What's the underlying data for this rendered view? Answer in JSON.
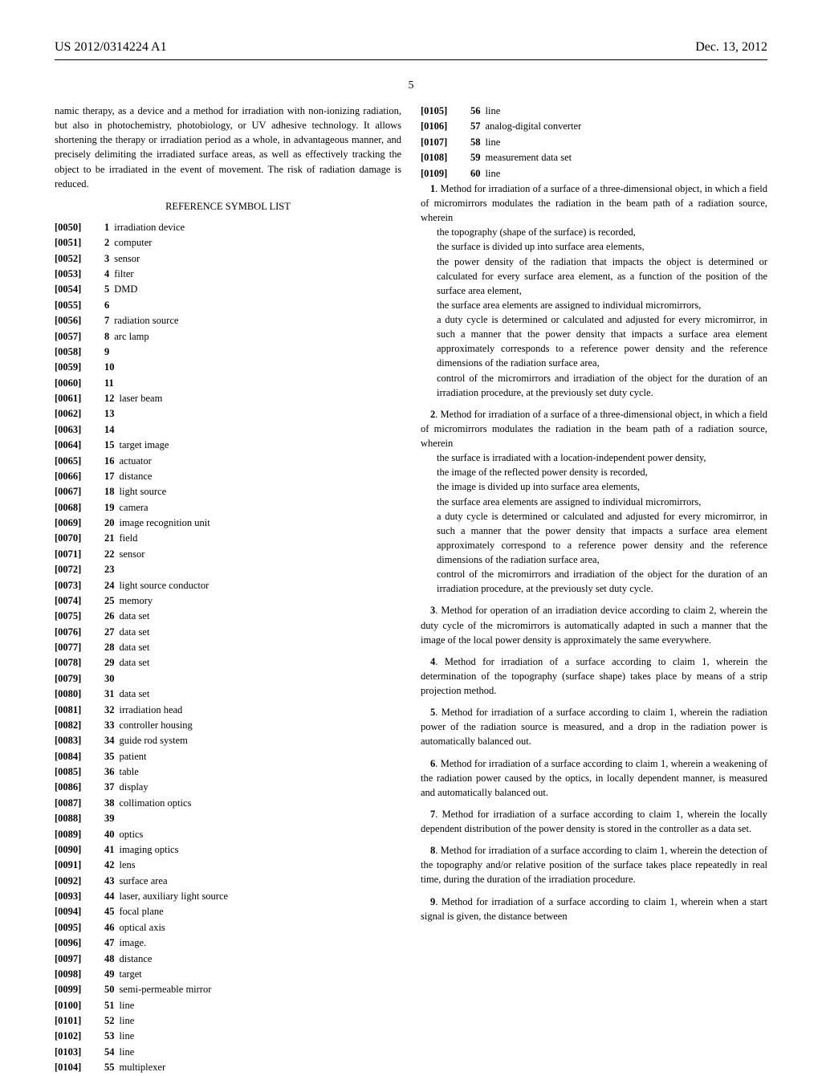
{
  "header": {
    "pub_number": "US 2012/0314224 A1",
    "pub_date": "Dec. 13, 2012",
    "page_number": "5"
  },
  "left_column": {
    "intro_para": "namic therapy, as a device and a method for irradiation with non-ionizing radiation, but also in photochemistry, photobiology, or UV adhesive technology. It allows shortening the therapy or irradiation period as a whole, in advantageous manner, and precisely delimiting the irradiated surface areas, as well as effectively tracking the object to be irradiated in the event of movement. The risk of radiation damage is reduced.",
    "section_title": "REFERENCE SYMBOL LIST",
    "refs": [
      {
        "para": "[0050]",
        "sym": "1",
        "desc": "irradiation device"
      },
      {
        "para": "[0051]",
        "sym": "2",
        "desc": "computer"
      },
      {
        "para": "[0052]",
        "sym": "3",
        "desc": "sensor"
      },
      {
        "para": "[0053]",
        "sym": "4",
        "desc": "filter"
      },
      {
        "para": "[0054]",
        "sym": "5",
        "desc": "DMD"
      },
      {
        "para": "[0055]",
        "sym": "6",
        "desc": ""
      },
      {
        "para": "[0056]",
        "sym": "7",
        "desc": "radiation source"
      },
      {
        "para": "[0057]",
        "sym": "8",
        "desc": "arc lamp"
      },
      {
        "para": "[0058]",
        "sym": "9",
        "desc": ""
      },
      {
        "para": "[0059]",
        "sym": "10",
        "desc": ""
      },
      {
        "para": "[0060]",
        "sym": "11",
        "desc": ""
      },
      {
        "para": "[0061]",
        "sym": "12",
        "desc": "laser beam"
      },
      {
        "para": "[0062]",
        "sym": "13",
        "desc": ""
      },
      {
        "para": "[0063]",
        "sym": "14",
        "desc": ""
      },
      {
        "para": "[0064]",
        "sym": "15",
        "desc": "target image"
      },
      {
        "para": "[0065]",
        "sym": "16",
        "desc": "actuator"
      },
      {
        "para": "[0066]",
        "sym": "17",
        "desc": "distance"
      },
      {
        "para": "[0067]",
        "sym": "18",
        "desc": "light source"
      },
      {
        "para": "[0068]",
        "sym": "19",
        "desc": "camera"
      },
      {
        "para": "[0069]",
        "sym": "20",
        "desc": "image recognition unit"
      },
      {
        "para": "[0070]",
        "sym": "21",
        "desc": "field"
      },
      {
        "para": "[0071]",
        "sym": "22",
        "desc": "sensor"
      },
      {
        "para": "[0072]",
        "sym": "23",
        "desc": ""
      },
      {
        "para": "[0073]",
        "sym": "24",
        "desc": "light source conductor"
      },
      {
        "para": "[0074]",
        "sym": "25",
        "desc": "memory"
      },
      {
        "para": "[0075]",
        "sym": "26",
        "desc": "data set"
      },
      {
        "para": "[0076]",
        "sym": "27",
        "desc": "data set"
      },
      {
        "para": "[0077]",
        "sym": "28",
        "desc": "data set"
      },
      {
        "para": "[0078]",
        "sym": "29",
        "desc": "data set"
      },
      {
        "para": "[0079]",
        "sym": "30",
        "desc": ""
      },
      {
        "para": "[0080]",
        "sym": "31",
        "desc": "data set"
      },
      {
        "para": "[0081]",
        "sym": "32",
        "desc": "irradiation head"
      },
      {
        "para": "[0082]",
        "sym": "33",
        "desc": "controller housing"
      },
      {
        "para": "[0083]",
        "sym": "34",
        "desc": "guide rod system"
      },
      {
        "para": "[0084]",
        "sym": "35",
        "desc": "patient"
      },
      {
        "para": "[0085]",
        "sym": "36",
        "desc": "table"
      },
      {
        "para": "[0086]",
        "sym": "37",
        "desc": "display"
      },
      {
        "para": "[0087]",
        "sym": "38",
        "desc": "collimation optics"
      },
      {
        "para": "[0088]",
        "sym": "39",
        "desc": ""
      },
      {
        "para": "[0089]",
        "sym": "40",
        "desc": "optics"
      },
      {
        "para": "[0090]",
        "sym": "41",
        "desc": "imaging optics"
      },
      {
        "para": "[0091]",
        "sym": "42",
        "desc": "lens"
      },
      {
        "para": "[0092]",
        "sym": "43",
        "desc": "surface area"
      },
      {
        "para": "[0093]",
        "sym": "44",
        "desc": "laser, auxiliary light source"
      },
      {
        "para": "[0094]",
        "sym": "45",
        "desc": "focal plane"
      },
      {
        "para": "[0095]",
        "sym": "46",
        "desc": "optical axis"
      },
      {
        "para": "[0096]",
        "sym": "47",
        "desc": "image."
      },
      {
        "para": "[0097]",
        "sym": "48",
        "desc": "distance"
      },
      {
        "para": "[0098]",
        "sym": "49",
        "desc": "target"
      },
      {
        "para": "[0099]",
        "sym": "50",
        "desc": "semi-permeable mirror"
      },
      {
        "para": "[0100]",
        "sym": "51",
        "desc": "line"
      },
      {
        "para": "[0101]",
        "sym": "52",
        "desc": "line"
      },
      {
        "para": "[0102]",
        "sym": "53",
        "desc": "line"
      },
      {
        "para": "[0103]",
        "sym": "54",
        "desc": "line"
      },
      {
        "para": "[0104]",
        "sym": "55",
        "desc": "multiplexer"
      }
    ]
  },
  "right_column": {
    "refs_top": [
      {
        "para": "[0105]",
        "sym": "56",
        "desc": "line"
      },
      {
        "para": "[0106]",
        "sym": "57",
        "desc": "analog-digital converter"
      },
      {
        "para": "[0107]",
        "sym": "58",
        "desc": "line"
      },
      {
        "para": "[0108]",
        "sym": "59",
        "desc": "measurement data set"
      },
      {
        "para": "[0109]",
        "sym": "60",
        "desc": "line"
      }
    ],
    "claims": [
      {
        "num": "1",
        "intro": ". Method for irradiation of a surface of a three-dimensional object, in which a field of micromirrors modulates the radiation in the beam path of a radiation source, wherein",
        "items": [
          "the topography (shape of the surface) is recorded,",
          "the surface is divided up into surface area elements,",
          "the power density of the radiation that impacts the object is determined or calculated for every surface area element, as a function of the position of the surface area element,",
          "the surface area elements are assigned to individual micromirrors,",
          "a duty cycle is determined or calculated and adjusted for every micromirror, in such a manner that the power density that impacts a surface area element approximately corresponds to a reference power density and the reference dimensions of the radiation surface area,",
          "control of the micromirrors and irradiation of the object for the duration of an irradiation procedure, at the previously set duty cycle."
        ]
      },
      {
        "num": "2",
        "intro": ". Method for irradiation of a surface of a three-dimensional object, in which a field of micromirrors modulates the radiation in the beam path of a radiation source, wherein",
        "items": [
          "the surface is irradiated with a location-independent power density,",
          "the image of the reflected power density is recorded,",
          "the image is divided up into surface area elements,",
          "the surface area elements are assigned to individual micromirrors,",
          "a duty cycle is determined or calculated and adjusted for every micromirror, in such a manner that the power density that impacts a surface area element approximately correspond to a reference power density and the reference dimensions of the radiation surface area,",
          "control of the micromirrors and irradiation of the object for the duration of an irradiation procedure, at the previously set duty cycle."
        ]
      },
      {
        "num": "3",
        "text": ". Method for operation of an irradiation device according to claim 2, wherein the duty cycle of the micromirrors is automatically adapted in such a manner that the image of the local power density is approximately the same everywhere."
      },
      {
        "num": "4",
        "text": ". Method for irradiation of a surface according to claim 1, wherein the determination of the topography (surface shape) takes place by means of a strip projection method."
      },
      {
        "num": "5",
        "text": ". Method for irradiation of a surface according to claim 1, wherein the radiation power of the radiation source is measured, and a drop in the radiation power is automatically balanced out."
      },
      {
        "num": "6",
        "text": ". Method for irradiation of a surface according to claim 1, wherein a weakening of the radiation power caused by the optics, in locally dependent manner, is measured and automatically balanced out."
      },
      {
        "num": "7",
        "text": ". Method for irradiation of a surface according to claim 1, wherein the locally dependent distribution of the power density is stored in the controller as a data set."
      },
      {
        "num": "8",
        "text": ". Method for irradiation of a surface according to claim 1, wherein the detection of the topography and/or relative position of the surface takes place repeatedly in real time, during the duration of the irradiation procedure."
      },
      {
        "num": "9",
        "text": ". Method for irradiation of a surface according to claim 1, wherein when a start signal is given, the distance between"
      }
    ]
  }
}
